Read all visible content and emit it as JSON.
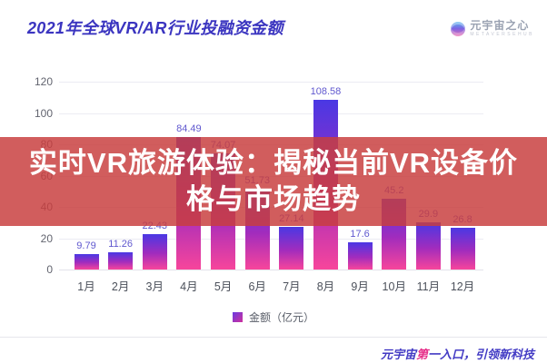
{
  "header": {
    "title": "2021年全球VR/AR行业投融资金额",
    "logo": {
      "name": "元宇宙之心",
      "subtext": "METAVERSEHUB"
    }
  },
  "banner": {
    "line1": "实时VR旅游体验：揭秘当前VR设备价",
    "line2": "格与市场趋势"
  },
  "chart_data": {
    "type": "bar",
    "title": "2021年全球VR/AR行业投融资金额",
    "categories": [
      "1月",
      "2月",
      "3月",
      "4月",
      "5月",
      "6月",
      "7月",
      "8月",
      "9月",
      "10月",
      "11月",
      "12月"
    ],
    "values": [
      9.79,
      11.26,
      22.43,
      84.49,
      74.07,
      51.73,
      27.14,
      108.58,
      17.6,
      45.2,
      29.9,
      26.8
    ],
    "value_labels": [
      "9.79",
      "11.26",
      "22.43",
      "84.49",
      "74.07",
      "51.73",
      "27.14",
      "108.58",
      "17.6",
      "45.2",
      "29.9",
      "26.8"
    ],
    "legend": "金额（亿元）",
    "xlabel": "",
    "ylabel": "",
    "ylim": [
      0,
      120
    ],
    "yticks": [
      0,
      20,
      40,
      60,
      80,
      100,
      120
    ],
    "grid": true,
    "legend_position": "bottom",
    "bar_gradient": [
      "#4a38e4",
      "#a22cbd",
      "#f7459b"
    ]
  },
  "footer": {
    "part1": "元宇宙",
    "highlight": "第",
    "part2": "一入口，引领新科技"
  },
  "colors": {
    "title_indigo": "#3b35c0",
    "banner_overlay": "rgba(200,62,62,0.84)",
    "value_label": "#6058cf",
    "highlight_pink": "#e6308a",
    "gridline": "#ececf3"
  }
}
